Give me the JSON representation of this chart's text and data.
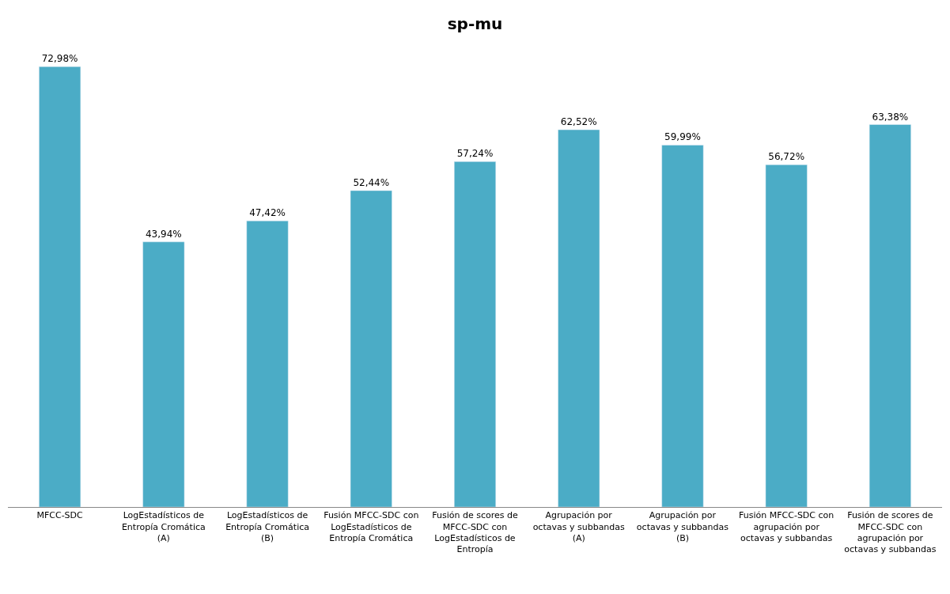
{
  "chart_data": {
    "type": "bar",
    "title": "sp-mu",
    "categories": [
      "MFCC-SDC",
      "LogEstadísticos de Entropía Cromática (A)",
      "LogEstadísticos de Entropía Cromática (B)",
      "Fusión MFCC-SDC con LogEstadísticos de Entropía Cromática",
      "Fusión de scores de MFCC-SDC con LogEstadísticos de Entropía",
      "Agrupación por octavas y subbandas (A)",
      "Agrupación por octavas y subbandas (B)",
      "Fusión MFCC-SDC con agrupación por octavas y subbandas",
      "Fusión de scores de MFCC-SDC con agrupación por octavas y subbandas"
    ],
    "values": [
      72.98,
      43.94,
      47.42,
      52.44,
      57.24,
      62.52,
      59.99,
      56.72,
      63.38
    ],
    "value_labels": [
      "72,98%",
      "43,94%",
      "47,42%",
      "52,44%",
      "57,24%",
      "62,52%",
      "59,99%",
      "56,72%",
      "63,38%"
    ],
    "color": "#4bacc6"
  }
}
